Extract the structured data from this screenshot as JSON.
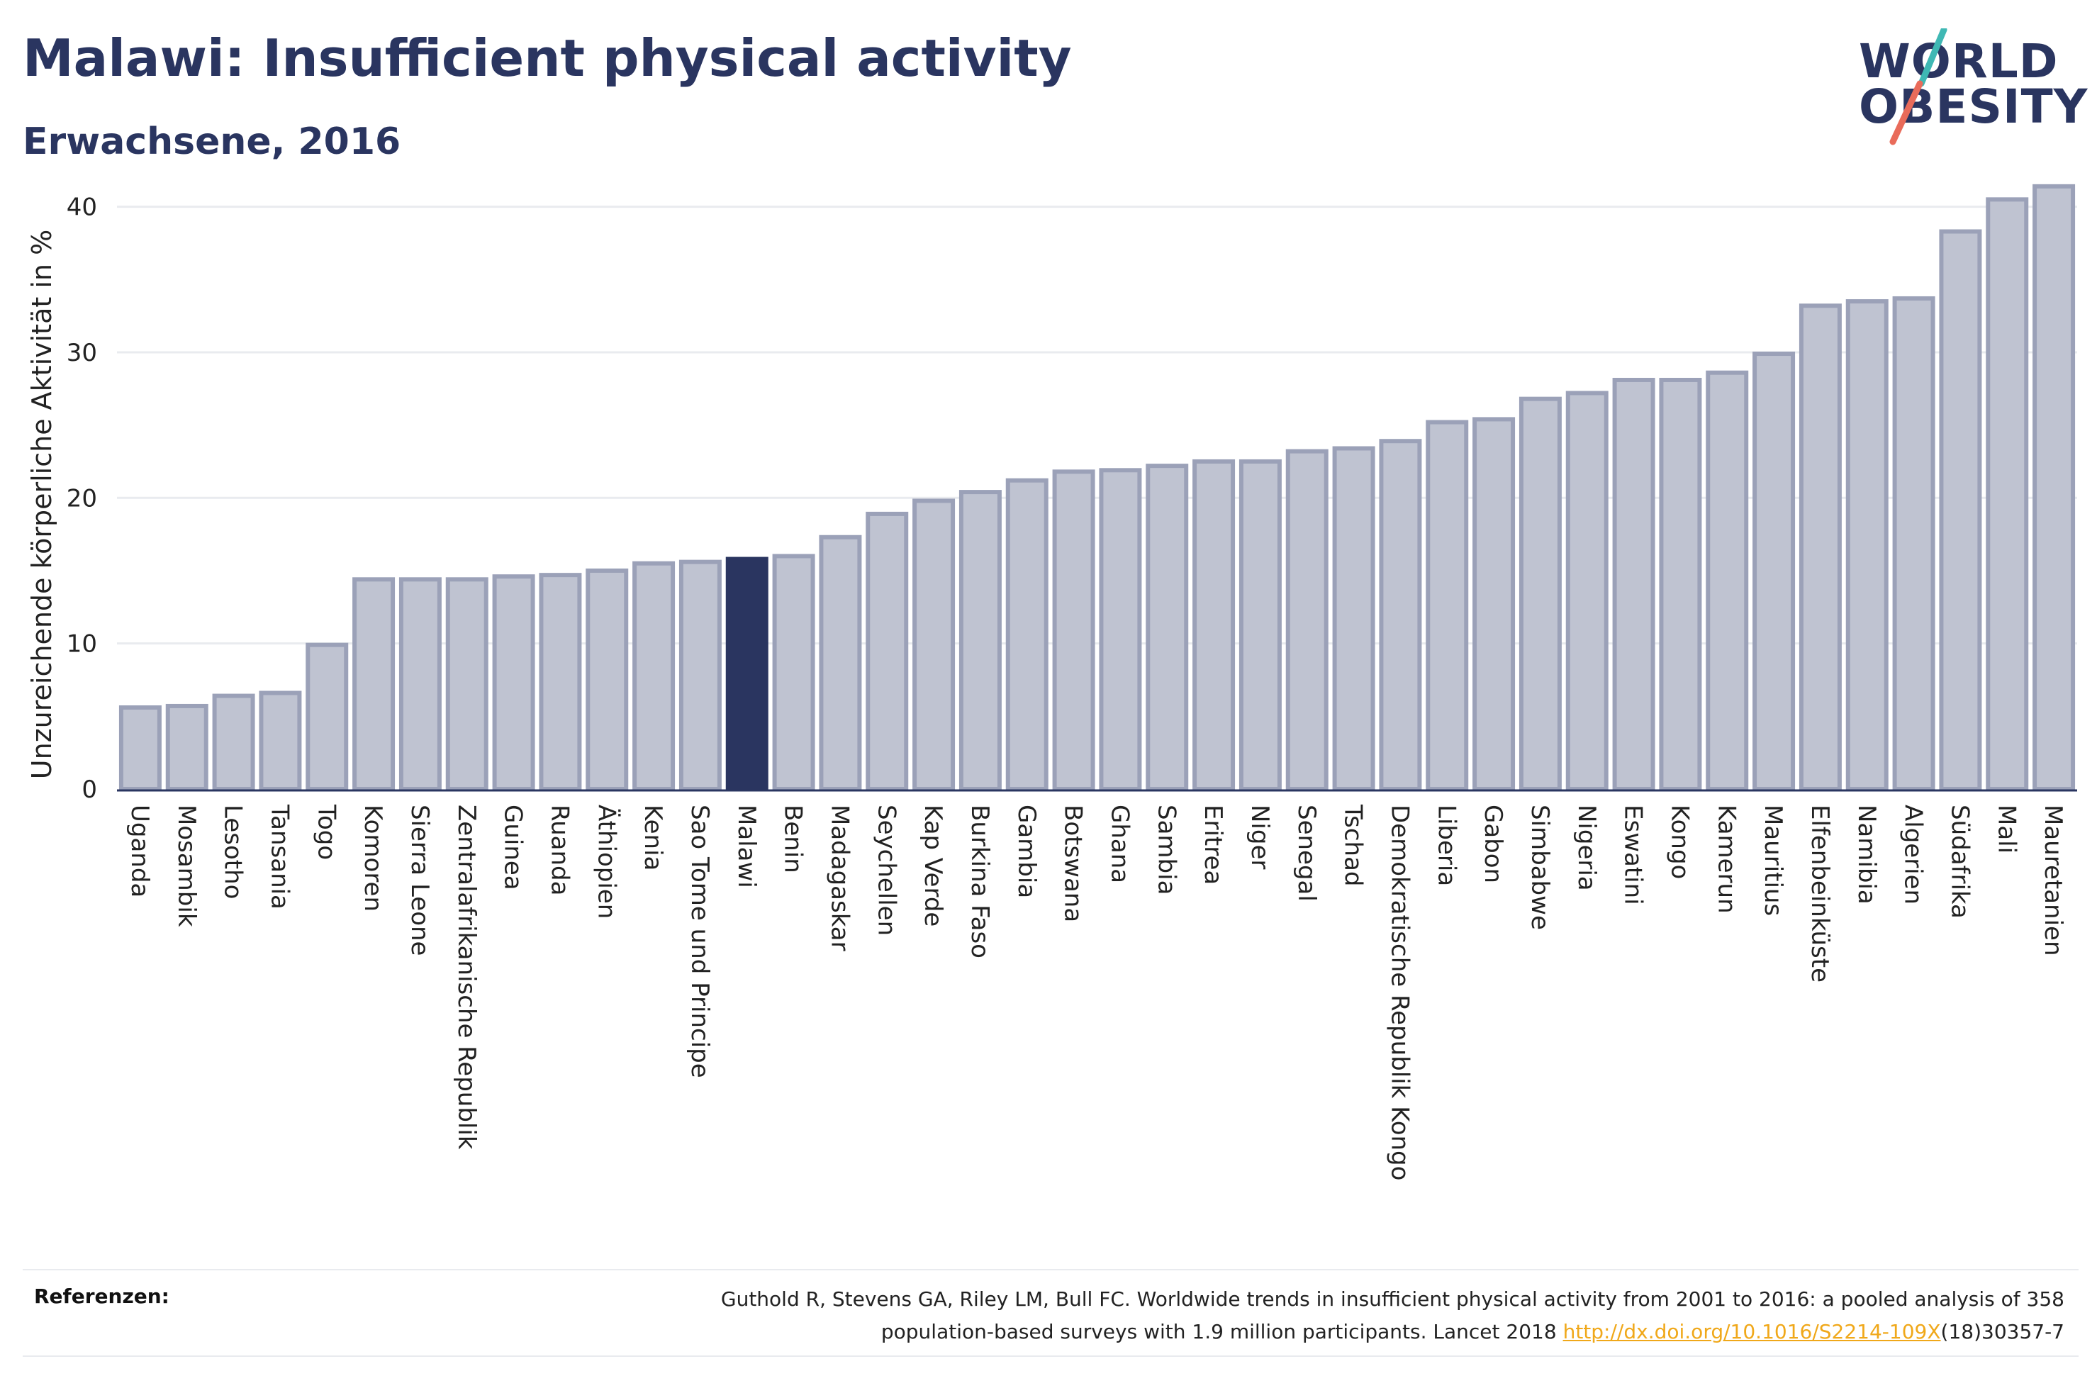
{
  "header": {
    "title": "Malawi: Insufficient physical activity",
    "subtitle": "Erwachsene, 2016"
  },
  "logo": {
    "line1": "WORLD",
    "line2": "OBESITY",
    "accent_teal": "#3fb8b4",
    "accent_red": "#e96b5a"
  },
  "colors": {
    "bar": "#bfc3d1",
    "bar_border": "#9ba1b8",
    "highlight": "#2a3560",
    "grid": "#e9ebef",
    "axis": "#2a3560"
  },
  "chart_data": {
    "type": "bar",
    "ylabel": "Unzureichende körperliche Aktivität in %",
    "xlabel": "",
    "ylim": [
      0,
      43
    ],
    "yticks": [
      0,
      10,
      20,
      30,
      40
    ],
    "grid": true,
    "highlight": "Malawi",
    "categories": [
      "Uganda",
      "Mosambik",
      "Lesotho",
      "Tansania",
      "Togo",
      "Komoren",
      "Sierra Leone",
      "Zentralafrikanische Republik",
      "Guinea",
      "Ruanda",
      "Äthiopien",
      "Kenia",
      "Sao Tome und Principe",
      "Malawi",
      "Benin",
      "Madagaskar",
      "Seychellen",
      "Kap Verde",
      "Burkina Faso",
      "Gambia",
      "Botswana",
      "Ghana",
      "Sambia",
      "Eritrea",
      "Niger",
      "Senegal",
      "Tschad",
      "Demokratische Republik Kongo",
      "Liberia",
      "Gabon",
      "Simbabwe",
      "Nigeria",
      "Eswatini",
      "Kongo",
      "Kamerun",
      "Mauritius",
      "Elfenbeinküste",
      "Namibia",
      "Algerien",
      "Südafrika",
      "Mali",
      "Mauretanien"
    ],
    "values": [
      5.6,
      5.7,
      6.4,
      6.6,
      9.9,
      14.4,
      14.4,
      14.4,
      14.6,
      14.7,
      15.0,
      15.5,
      15.6,
      15.8,
      16.0,
      17.3,
      18.9,
      19.8,
      20.4,
      21.2,
      21.8,
      21.9,
      22.2,
      22.5,
      22.5,
      23.2,
      23.4,
      23.9,
      25.2,
      25.4,
      26.8,
      27.2,
      28.1,
      28.1,
      28.6,
      29.9,
      33.2,
      33.5,
      33.7,
      38.3,
      40.5,
      41.4
    ]
  },
  "references": {
    "label": "Referenzen:",
    "text_line1": "Guthold R, Stevens GA, Riley LM, Bull FC. Worldwide trends in insufficient physical activity from 2001 to 2016: a pooled analysis of 358",
    "text_line2_pre": "population-based surveys with 1.9 million participants. Lancet 2018 ",
    "link": "http://dx.doi.org/10.1016/S2214-109X",
    "text_line2_post": "(18)30357-7"
  }
}
